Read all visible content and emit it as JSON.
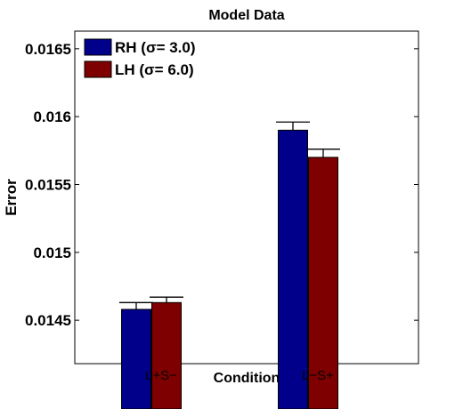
{
  "chart_data": {
    "type": "bar",
    "title": "Model Data",
    "xlabel": "Condition",
    "ylabel": "Error",
    "categories": [
      "L+S−",
      "L−S+"
    ],
    "series": [
      {
        "name": "RH (σ= 3.0)",
        "values": [
          0.01458,
          0.0159
        ],
        "errors": [
          5e-05,
          6e-05
        ],
        "color": "#00008b"
      },
      {
        "name": "LH (σ= 6.0)",
        "values": [
          0.01463,
          0.0157
        ],
        "errors": [
          4e-05,
          6e-05
        ],
        "color": "#7f0000"
      }
    ],
    "ylim": [
      0.01418,
      0.01663
    ],
    "yticks": [
      0.0145,
      0.015,
      0.0155,
      0.016,
      0.0165
    ],
    "ytick_labels": [
      "0.0145",
      "0.015",
      "0.0155",
      "0.016",
      "0.0165"
    ],
    "grid": false,
    "legend_position": "top-left"
  }
}
